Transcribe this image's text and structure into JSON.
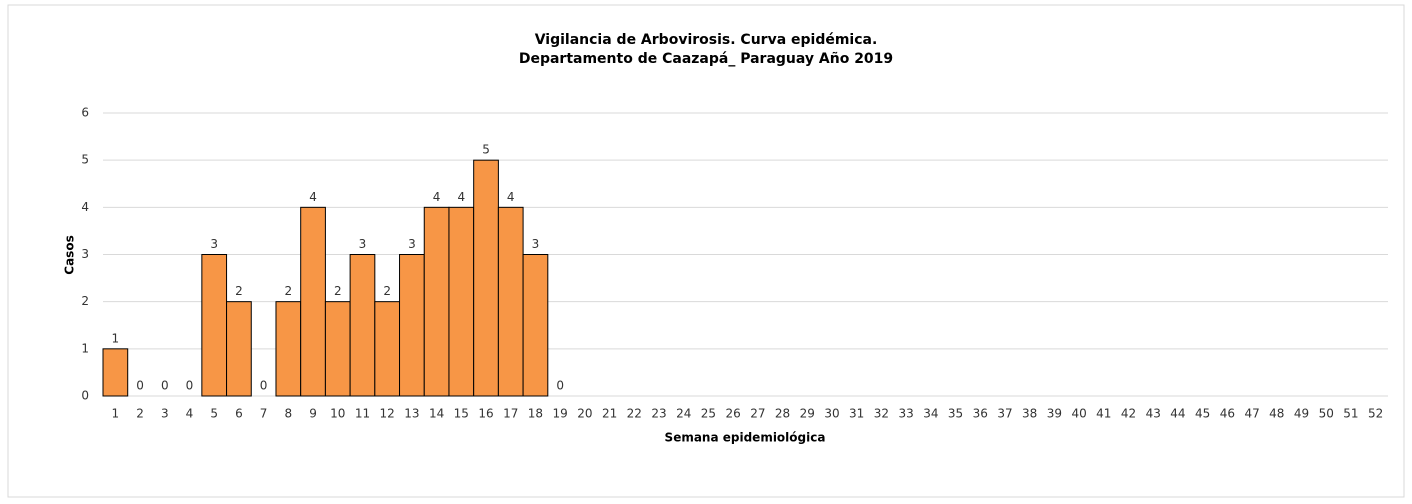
{
  "chart_data": {
    "type": "bar",
    "title": "Vigilancia de Arbovirosis. Curva epidémica.",
    "subtitle": "Departamento de Caazapá_ Paraguay Año 2019",
    "x_label": "Semana epidemiológica",
    "y_label": "Casos",
    "categories": [
      "1",
      "2",
      "3",
      "4",
      "5",
      "6",
      "7",
      "8",
      "9",
      "10",
      "11",
      "12",
      "13",
      "14",
      "15",
      "16",
      "17",
      "18",
      "19",
      "20",
      "21",
      "22",
      "23",
      "24",
      "25",
      "26",
      "27",
      "28",
      "29",
      "30",
      "31",
      "32",
      "33",
      "34",
      "35",
      "36",
      "37",
      "38",
      "39",
      "40",
      "41",
      "42",
      "43",
      "44",
      "45",
      "46",
      "47",
      "48",
      "49",
      "50",
      "51",
      "52"
    ],
    "values": [
      1,
      0,
      0,
      0,
      3,
      2,
      0,
      2,
      4,
      2,
      3,
      2,
      3,
      4,
      4,
      5,
      4,
      3,
      0,
      null,
      null,
      null,
      null,
      null,
      null,
      null,
      null,
      null,
      null,
      null,
      null,
      null,
      null,
      null,
      null,
      null,
      null,
      null,
      null,
      null,
      null,
      null,
      null,
      null,
      null,
      null,
      null,
      null,
      null,
      null,
      null,
      null
    ],
    "color": "#f79646",
    "ylim": [
      0,
      6
    ],
    "yticks": [
      0,
      1,
      2,
      3,
      4,
      5,
      6
    ],
    "grid": true
  }
}
